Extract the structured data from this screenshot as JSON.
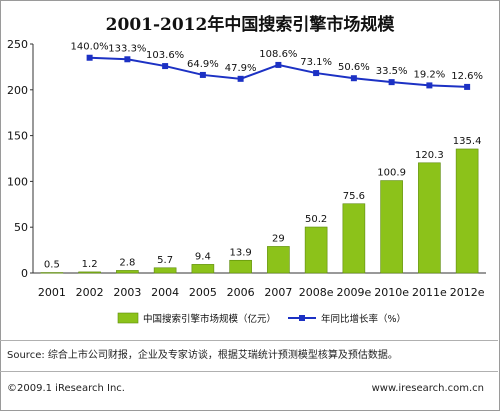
{
  "chart_data": {
    "type": "bar",
    "title": "2001-2012年中国搜索引擎市场规模",
    "categories": [
      "2001",
      "2002",
      "2003",
      "2004",
      "2005",
      "2006",
      "2007",
      "2008e",
      "2009e",
      "2010e",
      "2011e",
      "2012e"
    ],
    "series": [
      {
        "name": "中国搜索引擎市场规模（亿元）",
        "type": "bar",
        "color": "#8cc21a",
        "values": [
          0.5,
          1.2,
          2.8,
          5.7,
          9.4,
          13.9,
          29,
          50.2,
          75.6,
          100.9,
          120.3,
          135.4
        ],
        "labels": [
          "0.5",
          "1.2",
          "2.8",
          "5.7",
          "9.4",
          "13.9",
          "29",
          "50.2",
          "75.6",
          "100.9",
          "120.3",
          "135.4"
        ]
      },
      {
        "name": "年同比增长率（%）",
        "type": "line",
        "color": "#1c31c4",
        "values": [
          null,
          140.0,
          133.3,
          103.6,
          64.9,
          47.9,
          108.6,
          73.1,
          50.6,
          33.5,
          19.2,
          12.6
        ],
        "labels": [
          "",
          "140.0%",
          "133.3%",
          "103.6%",
          "64.9%",
          "47.9%",
          "108.6%",
          "73.1%",
          "50.6%",
          "33.5%",
          "19.2%",
          "12.6%"
        ]
      }
    ],
    "y_ticks": [
      "0",
      "50",
      "100",
      "150",
      "200",
      "250"
    ],
    "ylim": [
      0,
      250
    ],
    "legend_position": "bottom",
    "grid": false
  },
  "footer": {
    "source": "Source: 综合上市公司财报，企业及专家访谈，根据艾瑞统计预测模型核算及预估数据。",
    "copyright": "©2009.1 iResearch Inc.",
    "website": "www.iresearch.com.cn"
  }
}
